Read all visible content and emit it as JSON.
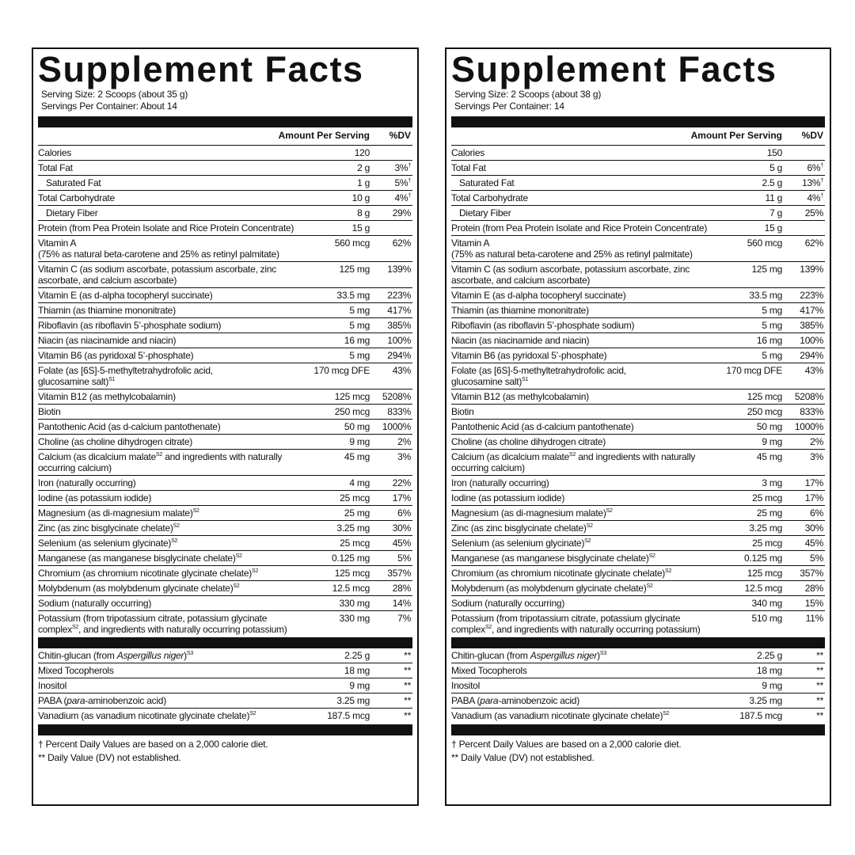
{
  "panels": [
    {
      "title": "Supplement Facts",
      "serving_size": "Serving Size: 2 Scoops (about 35 g)",
      "servings_per_container": "Servings Per Container: About 14",
      "header": {
        "amount": "Amount Per Serving",
        "dv": "%DV"
      },
      "rows": [
        {
          "name": [
            "Calories"
          ],
          "amount": "120"
        },
        {
          "name": [
            "Total Fat"
          ],
          "amount": "2 g",
          "dv": "3%",
          "dv_sup": "†"
        },
        {
          "name": [
            "Saturated Fat"
          ],
          "indent": true,
          "amount": "1 g",
          "dv": "5%",
          "dv_sup": "†"
        },
        {
          "name": [
            "Total Carbohydrate"
          ],
          "amount": "10 g",
          "dv": "4%",
          "dv_sup": "†"
        },
        {
          "name": [
            "Dietary Fiber"
          ],
          "indent": true,
          "amount": "8 g",
          "dv": "29%"
        },
        {
          "name": [
            "Protein (from Pea Protein Isolate and Rice Protein Concentrate)"
          ],
          "amount": "15 g"
        },
        {
          "name": [
            "Vitamin A\n(75% as natural beta-carotene and 25% as retinyl palmitate)"
          ],
          "amount": "560 mcg",
          "dv": "62%"
        },
        {
          "name": [
            "Vitamin C (as sodium ascorbate, potassium ascorbate, zinc ascorbate, and calcium ascorbate)"
          ],
          "amount": "125 mg",
          "dv": "139%"
        },
        {
          "name": [
            "Vitamin E (as d-alpha tocopheryl succinate)"
          ],
          "amount": "33.5 mg",
          "dv": "223%"
        },
        {
          "name": [
            "Thiamin (as thiamine mononitrate)"
          ],
          "amount": "5 mg",
          "dv": "417%"
        },
        {
          "name": [
            "Riboflavin (as riboflavin 5’-phosphate sodium)"
          ],
          "amount": "5 mg",
          "dv": "385%"
        },
        {
          "name": [
            "Niacin (as niacinamide and niacin)"
          ],
          "amount": "16 mg",
          "dv": "100%"
        },
        {
          "name": [
            "Vitamin B6 (as pyridoxal 5’-phosphate)"
          ],
          "amount": "5 mg",
          "dv": "294%"
        },
        {
          "name": [
            "Folate (as [6S]-5-methyltetrahydrofolic acid,\nglucosamine salt)",
            {
              "sup": "S1"
            }
          ],
          "amount": "170 mcg DFE",
          "dv": "43%"
        },
        {
          "name": [
            "Vitamin B12 (as methylcobalamin)"
          ],
          "amount": "125 mcg",
          "dv": "5208%"
        },
        {
          "name": [
            "Biotin"
          ],
          "amount": "250 mcg",
          "dv": "833%"
        },
        {
          "name": [
            "Pantothenic Acid (as d-calcium pantothenate)"
          ],
          "amount": "50 mg",
          "dv": "1000%"
        },
        {
          "name": [
            "Choline (as choline dihydrogen citrate)"
          ],
          "amount": "9 mg",
          "dv": "2%"
        },
        {
          "name": [
            "Calcium (as dicalcium malate",
            {
              "sup": "S2"
            },
            " and ingredients with naturally occurring calcium)"
          ],
          "amount": "45 mg",
          "dv": "3%"
        },
        {
          "name": [
            "Iron (naturally occurring)"
          ],
          "amount": "4 mg",
          "dv": "22%"
        },
        {
          "name": [
            "Iodine (as potassium iodide)"
          ],
          "amount": "25 mcg",
          "dv": "17%"
        },
        {
          "name": [
            "Magnesium (as di-magnesium malate)",
            {
              "sup": "S2"
            }
          ],
          "amount": "25 mg",
          "dv": "6%"
        },
        {
          "name": [
            "Zinc (as zinc bisglycinate chelate)",
            {
              "sup": "S2"
            }
          ],
          "amount": "3.25 mg",
          "dv": "30%"
        },
        {
          "name": [
            "Selenium (as selenium glycinate)",
            {
              "sup": "S2"
            }
          ],
          "amount": "25 mcg",
          "dv": "45%"
        },
        {
          "name": [
            "Manganese (as manganese bisglycinate chelate)",
            {
              "sup": "S2"
            }
          ],
          "amount": "0.125 mg",
          "dv": "5%"
        },
        {
          "name": [
            "Chromium (as chromium nicotinate glycinate chelate)",
            {
              "sup": "S2"
            }
          ],
          "amount": "125 mcg",
          "dv": "357%"
        },
        {
          "name": [
            "Molybdenum (as molybdenum glycinate chelate)",
            {
              "sup": "S2"
            }
          ],
          "amount": "12.5 mcg",
          "dv": "28%"
        },
        {
          "name": [
            "Sodium (naturally occurring)"
          ],
          "amount": "330 mg",
          "dv": "14%"
        },
        {
          "name": [
            "Potassium (from tripotassium citrate, potassium glycinate\ncomplex",
            {
              "sup": "S2"
            },
            ", and ingredients with naturally occurring potassium)"
          ],
          "amount": "330 mg",
          "dv": "7%"
        }
      ],
      "other_rows": [
        {
          "name": [
            "Chitin-glucan (from ",
            {
              "em": "Aspergillus niger"
            },
            ")",
            {
              "sup": "S3"
            }
          ],
          "amount": "2.25 g",
          "dv": "**"
        },
        {
          "name": [
            "Mixed Tocopherols"
          ],
          "amount": "18 mg",
          "dv": "**"
        },
        {
          "name": [
            "Inositol"
          ],
          "amount": "9 mg",
          "dv": "**"
        },
        {
          "name": [
            "PABA (",
            {
              "em": "para"
            },
            "-aminobenzoic acid)"
          ],
          "amount": "3.25 mg",
          "dv": "**"
        },
        {
          "name": [
            "Vanadium (as vanadium nicotinate glycinate chelate)",
            {
              "sup": "S2"
            }
          ],
          "amount": "187.5 mcg",
          "dv": "**"
        }
      ],
      "footnotes": [
        "† Percent Daily Values are based on a 2,000 calorie diet.",
        "** Daily Value (DV) not established."
      ]
    },
    {
      "title": "Supplement Facts",
      "serving_size": "Serving Size: 2 Scoops (about 38 g)",
      "servings_per_container": "Servings Per Container: 14",
      "header": {
        "amount": "Amount Per Serving",
        "dv": "%DV"
      },
      "rows": [
        {
          "name": [
            "Calories"
          ],
          "amount": "150"
        },
        {
          "name": [
            "Total Fat"
          ],
          "amount": "5 g",
          "dv": "6%",
          "dv_sup": "†"
        },
        {
          "name": [
            "Saturated Fat"
          ],
          "indent": true,
          "amount": "2.5 g",
          "dv": "13%",
          "dv_sup": "†"
        },
        {
          "name": [
            "Total Carbohydrate"
          ],
          "amount": "11 g",
          "dv": "4%",
          "dv_sup": "†"
        },
        {
          "name": [
            "Dietary Fiber"
          ],
          "indent": true,
          "amount": "7 g",
          "dv": "25%"
        },
        {
          "name": [
            "Protein (from Pea Protein Isolate and Rice Protein Concentrate)"
          ],
          "amount": "15 g"
        },
        {
          "name": [
            "Vitamin A\n(75% as natural beta-carotene and 25% as retinyl palmitate)"
          ],
          "amount": "560 mcg",
          "dv": "62%"
        },
        {
          "name": [
            "Vitamin C (as sodium ascorbate, potassium ascorbate, zinc ascorbate, and calcium ascorbate)"
          ],
          "amount": "125 mg",
          "dv": "139%"
        },
        {
          "name": [
            "Vitamin E (as d-alpha tocopheryl succinate)"
          ],
          "amount": "33.5 mg",
          "dv": "223%"
        },
        {
          "name": [
            "Thiamin (as thiamine mononitrate)"
          ],
          "amount": "5 mg",
          "dv": "417%"
        },
        {
          "name": [
            "Riboflavin (as riboflavin 5’-phosphate sodium)"
          ],
          "amount": "5 mg",
          "dv": "385%"
        },
        {
          "name": [
            "Niacin (as niacinamide and niacin)"
          ],
          "amount": "16 mg",
          "dv": "100%"
        },
        {
          "name": [
            "Vitamin B6 (as pyridoxal 5’-phosphate)"
          ],
          "amount": "5 mg",
          "dv": "294%"
        },
        {
          "name": [
            "Folate (as [6S]-5-methyltetrahydrofolic acid,\nglucosamine salt)",
            {
              "sup": "S1"
            }
          ],
          "amount": "170 mcg DFE",
          "dv": "43%"
        },
        {
          "name": [
            "Vitamin B12 (as methylcobalamin)"
          ],
          "amount": "125 mcg",
          "dv": "5208%"
        },
        {
          "name": [
            "Biotin"
          ],
          "amount": "250 mcg",
          "dv": "833%"
        },
        {
          "name": [
            "Pantothenic Acid (as d-calcium pantothenate)"
          ],
          "amount": "50 mg",
          "dv": "1000%"
        },
        {
          "name": [
            "Choline (as choline dihydrogen citrate)"
          ],
          "amount": "9 mg",
          "dv": "2%"
        },
        {
          "name": [
            "Calcium (as dicalcium malate",
            {
              "sup": "S2"
            },
            " and ingredients with naturally occurring calcium)"
          ],
          "amount": "45 mg",
          "dv": "3%"
        },
        {
          "name": [
            "Iron (naturally occurring)"
          ],
          "amount": "3 mg",
          "dv": "17%"
        },
        {
          "name": [
            "Iodine (as potassium iodide)"
          ],
          "amount": "25 mcg",
          "dv": "17%"
        },
        {
          "name": [
            "Magnesium (as di-magnesium malate)",
            {
              "sup": "S2"
            }
          ],
          "amount": "25 mg",
          "dv": "6%"
        },
        {
          "name": [
            "Zinc (as zinc bisglycinate chelate)",
            {
              "sup": "S2"
            }
          ],
          "amount": "3.25 mg",
          "dv": "30%"
        },
        {
          "name": [
            "Selenium (as selenium glycinate)",
            {
              "sup": "S2"
            }
          ],
          "amount": "25 mcg",
          "dv": "45%"
        },
        {
          "name": [
            "Manganese (as manganese bisglycinate chelate)",
            {
              "sup": "S2"
            }
          ],
          "amount": "0.125 mg",
          "dv": "5%"
        },
        {
          "name": [
            "Chromium (as chromium nicotinate glycinate chelate)",
            {
              "sup": "S2"
            }
          ],
          "amount": "125 mcg",
          "dv": "357%"
        },
        {
          "name": [
            "Molybdenum (as molybdenum glycinate chelate)",
            {
              "sup": "S2"
            }
          ],
          "amount": "12.5 mcg",
          "dv": "28%"
        },
        {
          "name": [
            "Sodium (naturally occurring)"
          ],
          "amount": "340 mg",
          "dv": "15%"
        },
        {
          "name": [
            "Potassium (from tripotassium citrate, potassium glycinate\ncomplex",
            {
              "sup": "S2"
            },
            ", and ingredients with naturally occurring potassium)"
          ],
          "amount": "510 mg",
          "dv": "11%"
        }
      ],
      "other_rows": [
        {
          "name": [
            "Chitin-glucan (from ",
            {
              "em": "Aspergillus niger"
            },
            ")",
            {
              "sup": "S3"
            }
          ],
          "amount": "2.25 g",
          "dv": "**"
        },
        {
          "name": [
            "Mixed Tocopherols"
          ],
          "amount": "18 mg",
          "dv": "**"
        },
        {
          "name": [
            "Inositol"
          ],
          "amount": "9 mg",
          "dv": "**"
        },
        {
          "name": [
            "PABA (",
            {
              "em": "para"
            },
            "-aminobenzoic acid)"
          ],
          "amount": "3.25 mg",
          "dv": "**"
        },
        {
          "name": [
            "Vanadium (as vanadium nicotinate glycinate chelate)",
            {
              "sup": "S2"
            }
          ],
          "amount": "187.5 mcg",
          "dv": "**"
        }
      ],
      "footnotes": [
        "† Percent Daily Values are based on a 2,000 calorie diet.",
        "** Daily Value (DV) not established."
      ]
    }
  ]
}
